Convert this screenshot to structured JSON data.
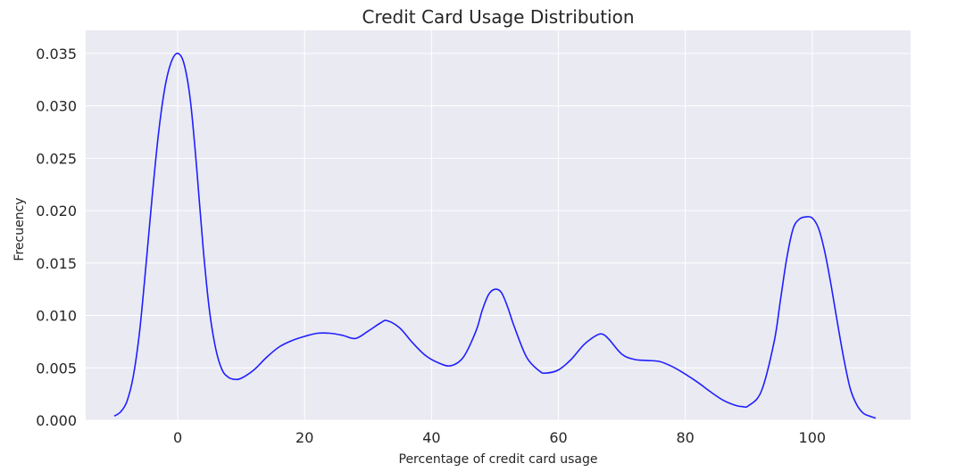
{
  "chart_data": {
    "type": "line",
    "title": "Credit Card Usage Distribution",
    "xlabel": "Percentage of credit card usage",
    "ylabel": "Frecuency",
    "xlim": [
      -14.5,
      115.5
    ],
    "ylim": [
      0,
      0.0372
    ],
    "xticks": [
      0,
      20,
      40,
      60,
      80,
      100
    ],
    "yticks": [
      0.0,
      0.005,
      0.01,
      0.015,
      0.02,
      0.025,
      0.03,
      0.035
    ],
    "ytick_labels": [
      "0.000",
      "0.005",
      "0.010",
      "0.015",
      "0.020",
      "0.025",
      "0.030",
      "0.035"
    ],
    "xtick_labels": [
      "0",
      "20",
      "40",
      "60",
      "80",
      "100"
    ],
    "grid": true,
    "background": "#eaeaf2",
    "line_color": "#1f1fff",
    "series": [
      {
        "x": [
          -10,
          -9,
          -8,
          -7,
          -6,
          -5,
          -4,
          -3,
          -2,
          -1,
          0,
          1,
          2,
          3,
          4,
          5,
          6,
          7,
          8,
          9,
          10,
          12,
          14,
          16,
          18,
          20,
          22,
          24,
          26,
          28,
          30,
          32,
          33,
          35,
          37,
          39,
          41,
          43,
          45,
          47,
          48,
          49,
          50,
          51,
          52,
          53,
          55,
          57,
          58,
          60,
          62,
          64,
          66,
          67,
          68,
          70,
          72,
          74,
          76,
          78,
          80,
          82,
          84,
          86,
          88,
          89,
          90,
          92,
          94,
          95,
          96,
          97,
          98,
          99,
          100,
          101,
          102,
          103,
          104,
          105,
          106,
          107,
          108,
          109,
          110
        ],
        "y": [
          0.0004,
          0.0008,
          0.0018,
          0.0042,
          0.0085,
          0.0148,
          0.0215,
          0.0275,
          0.0318,
          0.0342,
          0.035,
          0.034,
          0.0305,
          0.024,
          0.0165,
          0.0105,
          0.0068,
          0.0048,
          0.0041,
          0.0039,
          0.004,
          0.0048,
          0.006,
          0.007,
          0.0076,
          0.008,
          0.0083,
          0.0083,
          0.0081,
          0.0078,
          0.0085,
          0.0093,
          0.0095,
          0.0088,
          0.0074,
          0.0062,
          0.0055,
          0.0052,
          0.006,
          0.0085,
          0.0105,
          0.012,
          0.0125,
          0.0122,
          0.0108,
          0.009,
          0.006,
          0.0047,
          0.0045,
          0.0048,
          0.0058,
          0.0072,
          0.0081,
          0.0082,
          0.0077,
          0.0063,
          0.0058,
          0.0057,
          0.0056,
          0.0051,
          0.0044,
          0.0036,
          0.0027,
          0.0019,
          0.0014,
          0.0013,
          0.0014,
          0.0028,
          0.0075,
          0.0115,
          0.0155,
          0.0183,
          0.0192,
          0.0194,
          0.0193,
          0.0183,
          0.016,
          0.0128,
          0.0092,
          0.0058,
          0.003,
          0.0015,
          0.0007,
          0.0004,
          0.0002
        ]
      }
    ]
  }
}
